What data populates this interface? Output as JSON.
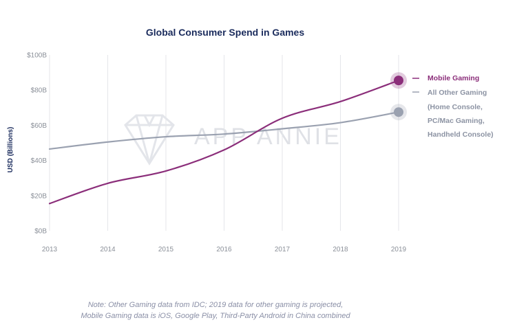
{
  "chart_data": {
    "type": "line",
    "title": "Global Consumer Spend in Games",
    "ylabel": "USD (Billions)",
    "xlabel": "",
    "x": [
      "2013",
      "2014",
      "2015",
      "2016",
      "2017",
      "2018",
      "2019"
    ],
    "y_ticks": [
      "$0B",
      "$20B",
      "$40B",
      "$60B",
      "$80B",
      "$100B"
    ],
    "ylim": [
      0,
      100
    ],
    "grid": "vertical",
    "legend_position": "right",
    "series": [
      {
        "name": "Mobile Gaming",
        "color": "#8b2e7a",
        "values": [
          15.5,
          27,
          34,
          46,
          64,
          73.5,
          85.5
        ]
      },
      {
        "name": "All Other Gaming\n(Home Console,\nPC/Mac Gaming,\nHandheld Console)",
        "color": "#9aa1b0",
        "values": [
          46.5,
          50.5,
          53.5,
          55,
          58,
          61.5,
          67.5
        ]
      }
    ],
    "legend": {
      "mobile": "Mobile Gaming",
      "other_lines": [
        "All Other Gaming",
        "(Home Console,",
        "PC/Mac Gaming,",
        "Handheld Console)"
      ]
    },
    "note_lines": [
      "Note: Other Gaming data from IDC; 2019 data for other gaming is projected,",
      "Mobile Gaming data is iOS, Google Play, Third-Party Android in China combined"
    ],
    "watermark": "APP ANNIE"
  }
}
